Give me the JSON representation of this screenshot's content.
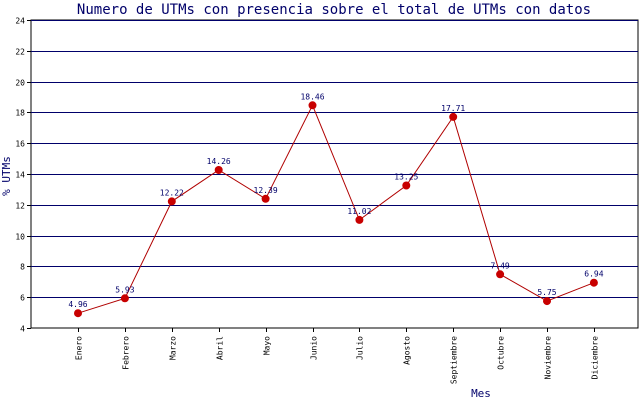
{
  "chart_data": {
    "type": "line",
    "title": "Numero de UTMs con presencia sobre el total de UTMs con datos",
    "xlabel": "Mes",
    "ylabel": "% UTMs",
    "categories": [
      "Enero",
      "Febrero",
      "Marzo",
      "Abril",
      "Mayo",
      "Junio",
      "Julio",
      "Agosto",
      "Septiembre",
      "Octubre",
      "Noviembre",
      "Diciembre"
    ],
    "values": [
      4.96,
      5.93,
      12.22,
      14.26,
      12.39,
      18.46,
      11.02,
      13.25,
      17.71,
      7.49,
      5.75,
      6.94
    ],
    "value_labels": [
      "4.96",
      "5.93",
      "12.22",
      "14.26",
      "12.39",
      "18.46",
      "11.02",
      "13.25",
      "17.71",
      "7.49",
      "5.75",
      "6.94"
    ],
    "ylim": [
      4,
      24
    ],
    "yticks": [
      4,
      6,
      8,
      10,
      12,
      14,
      16,
      18,
      20,
      22,
      24
    ],
    "grid": true,
    "legend": "none",
    "colors": {
      "line": "#b00000",
      "marker": "#c80000",
      "grid": "#00006a",
      "title": "#00006a",
      "axis_label": "#00006a",
      "data_label": "#00006a"
    }
  }
}
